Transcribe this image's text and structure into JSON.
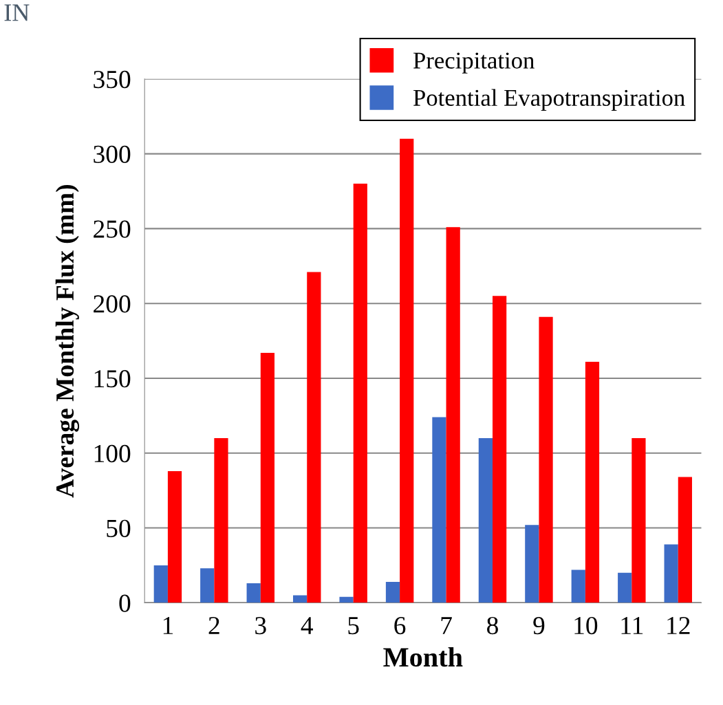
{
  "chart_data": {
    "type": "bar",
    "xlabel": "Month",
    "ylabel": "Average Monthly Flux (mm)",
    "categories": [
      "1",
      "2",
      "3",
      "4",
      "5",
      "6",
      "7",
      "8",
      "9",
      "10",
      "11",
      "12"
    ],
    "series": [
      {
        "name": "Potential Evapotranspiration",
        "color": "#3d6cc6",
        "values": [
          25,
          23,
          13,
          5,
          4,
          14,
          124,
          110,
          52,
          22,
          20,
          39
        ]
      },
      {
        "name": "Precipitation",
        "color": "#ff0000",
        "values": [
          88,
          110,
          167,
          221,
          280,
          310,
          251,
          205,
          191,
          161,
          110,
          84
        ]
      }
    ],
    "ylim": [
      0,
      350
    ],
    "yticks": [
      0,
      50,
      100,
      150,
      200,
      250,
      300,
      350
    ],
    "grid": "y",
    "legend": "top right",
    "annotations": [
      "IN"
    ]
  }
}
